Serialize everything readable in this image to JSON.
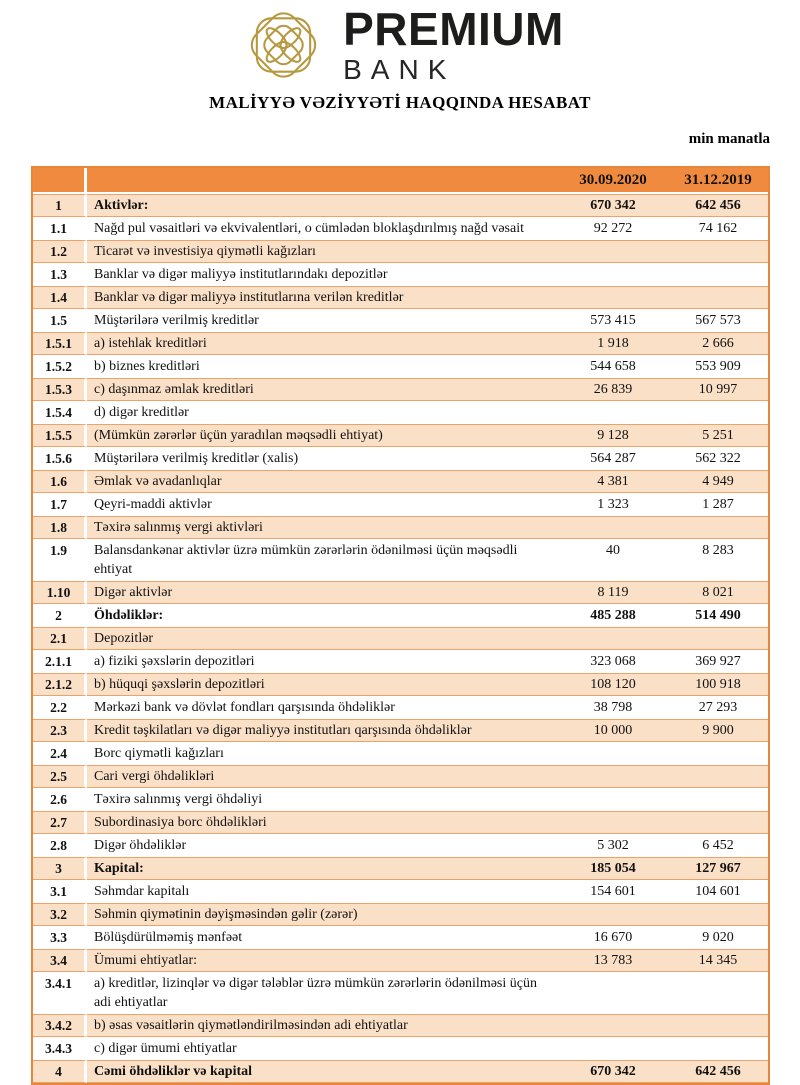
{
  "brand": {
    "name": "PREMIUM",
    "subname": "BANK",
    "emblem": "knot-emblem",
    "emblem_color": "#B6993F",
    "text_color": "#1D1D1B"
  },
  "title": "MALİYYƏ VƏZİYYƏTİ HAQQINDA HESABAT",
  "unit_note": "min manatla",
  "table": {
    "colors": {
      "header_bg": "#F08A3E",
      "stripe_bg": "#FBE0C8",
      "stripe_border": "#EBA26B",
      "outer_border": "#E8863B"
    },
    "columns": {
      "period1": "30.09.2020",
      "period2": "31.12.2019"
    },
    "rows": [
      {
        "no": "1",
        "label": "Aktivlər:",
        "v1": "670 342",
        "v2": "642 456",
        "bold": true
      },
      {
        "no": "1.1",
        "label": "Nağd pul vəsaitləri və  ekvivalentləri, o cümlədən bloklaşdırılmış nağd vəsait",
        "v1": "92 272",
        "v2": "74 162"
      },
      {
        "no": "1.2",
        "label": "Ticarət və investisiya qiymətli kağızları",
        "v1": "",
        "v2": ""
      },
      {
        "no": "1.3",
        "label": "Banklar və digər maliyyə institutlarındakı depozitlər",
        "v1": "",
        "v2": ""
      },
      {
        "no": "1.4",
        "label": "Banklar və digər maliyyə institutlarına verilən kreditlər",
        "v1": "",
        "v2": ""
      },
      {
        "no": "1.5",
        "label": "Müştərilərə verilmiş kreditlər",
        "v1": "573 415",
        "v2": "567 573"
      },
      {
        "no": "1.5.1",
        "label": "a) istehlak kreditləri",
        "v1": "1 918",
        "v2": "2 666"
      },
      {
        "no": "1.5.2",
        "label": "b) biznes kreditləri",
        "v1": "544 658",
        "v2": "553 909"
      },
      {
        "no": "1.5.3",
        "label": "c) daşınmaz əmlak kreditləri",
        "v1": "26 839",
        "v2": "10 997"
      },
      {
        "no": "1.5.4",
        "label": "d) digər kreditlər",
        "v1": "",
        "v2": ""
      },
      {
        "no": "1.5.5",
        "label": "(Mümkün zərərlər üçün yaradılan məqsədli ehtiyat)",
        "v1": "9 128",
        "v2": "5 251"
      },
      {
        "no": "1.5.6",
        "label": "Müştərilərə verilmiş kreditlər (xalis)",
        "v1": "564 287",
        "v2": "562 322"
      },
      {
        "no": "1.6",
        "label": "Əmlak və avadanlıqlar",
        "v1": "4 381",
        "v2": "4 949"
      },
      {
        "no": "1.7",
        "label": "Qeyri-maddi aktivlər",
        "v1": "1 323",
        "v2": "1 287"
      },
      {
        "no": "1.8",
        "label": "Təxirə salınmış vergi aktivləri",
        "v1": "",
        "v2": ""
      },
      {
        "no": "1.9",
        "label": "Balansdankənar aktivlər üzrə mümkün zərərlərin ödənilməsi üçün məqsədli ehtiyat",
        "v1": "40",
        "v2": "8 283"
      },
      {
        "no": "1.10",
        "label": "Digər aktivlər",
        "v1": "8 119",
        "v2": "8 021"
      },
      {
        "no": "2",
        "label": "Öhdəliklər:",
        "v1": "485 288",
        "v2": "514 490",
        "bold": true
      },
      {
        "no": "2.1",
        "label": "Depozitlər",
        "v1": "",
        "v2": ""
      },
      {
        "no": "2.1.1",
        "label": "a) fiziki şəxslərin depozitləri",
        "v1": "323 068",
        "v2": "369 927"
      },
      {
        "no": "2.1.2",
        "label": "b) hüquqi şəxslərin depozitləri",
        "v1": "108 120",
        "v2": "100 918"
      },
      {
        "no": "2.2",
        "label": "Mərkəzi bank və dövlət fondları qarşısında öhdəliklər",
        "v1": "38 798",
        "v2": "27 293"
      },
      {
        "no": "2.3",
        "label": "Kredit təşkilatları və digər maliyyə institutları qarşısında öhdəliklər",
        "v1": "10 000",
        "v2": "9 900"
      },
      {
        "no": "2.4",
        "label": "Borc qiymətli kağızları",
        "v1": "",
        "v2": ""
      },
      {
        "no": "2.5",
        "label": "Cari vergi öhdəlikləri",
        "v1": "",
        "v2": ""
      },
      {
        "no": "2.6",
        "label": "Təxirə salınmış vergi öhdəliyi",
        "v1": "",
        "v2": ""
      },
      {
        "no": "2.7",
        "label": "Subordinasiya borc öhdəlikləri",
        "v1": "",
        "v2": ""
      },
      {
        "no": "2.8",
        "label": "Digər öhdəliklər",
        "v1": "5 302",
        "v2": "6 452"
      },
      {
        "no": "3",
        "label": "Kapital:",
        "v1": "185 054",
        "v2": "127 967",
        "bold": true
      },
      {
        "no": "3.1",
        "label": "Səhmdar kapitalı",
        "v1": "154 601",
        "v2": "104 601"
      },
      {
        "no": "3.2",
        "label": "Səhmin qiymətinin dəyişməsindən gəlir (zərər)",
        "v1": "",
        "v2": ""
      },
      {
        "no": "3.3",
        "label": "Bölüşdürülməmiş mənfəət",
        "v1": "16 670",
        "v2": "9 020"
      },
      {
        "no": "3.4",
        "label": "Ümumi ehtiyatlar:",
        "v1": "13 783",
        "v2": "14 345"
      },
      {
        "no": "3.4.1",
        "label": "a) kreditlər, lizinqlər və digər tələblər üzrə mümkün zərərlərin ödənilməsi üçün adi ehtiyatlar",
        "v1": "",
        "v2": ""
      },
      {
        "no": "3.4.2",
        "label": "b) əsas vəsaitlərin qiymətləndirilməsindən adi ehtiyatlar",
        "v1": "",
        "v2": ""
      },
      {
        "no": "3.4.3",
        "label": "c) digər ümumi ehtiyatlar",
        "v1": "",
        "v2": ""
      },
      {
        "no": "4",
        "label": "Cəmi öhdəliklər və kapital",
        "v1": "670 342",
        "v2": "642 456",
        "bold": true
      }
    ]
  }
}
